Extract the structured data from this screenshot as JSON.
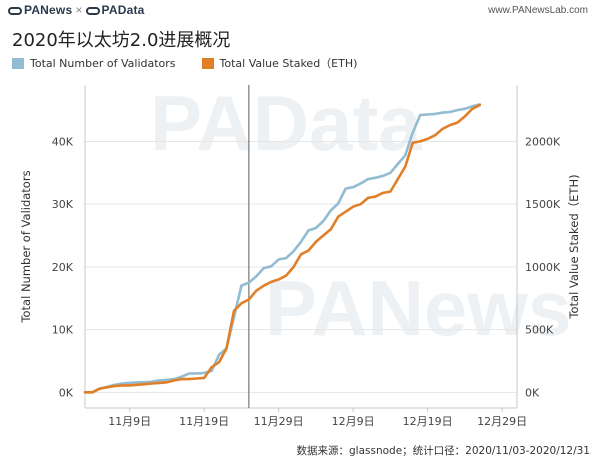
{
  "header": {
    "brand_left": "PANews",
    "brand_sep": "×",
    "brand_right": "PAData",
    "site": "www.PANewsLab.com"
  },
  "watermarks": [
    "PAData",
    "PANews"
  ],
  "colors": {
    "validators": "#93bcd2",
    "staked": "#e07f28",
    "grid": "#e6e6e6",
    "axis": "#c8c8c8",
    "marker": "#777777"
  },
  "source": "数据来源：glassnode；统计口径：2020/11/03-2020/12/31",
  "chart_data": {
    "type": "line",
    "title": "2020年以太坊2.0进展概况",
    "x_range": [
      "2020-11-03",
      "2020-12-31"
    ],
    "x_ticks": [
      {
        "date": "2020-11-09",
        "label": "11月9日"
      },
      {
        "date": "2020-11-19",
        "label": "11月19日"
      },
      {
        "date": "2020-11-29",
        "label": "11月29日"
      },
      {
        "date": "2020-12-09",
        "label": "12月9日"
      },
      {
        "date": "2020-12-19",
        "label": "12月19日"
      },
      {
        "date": "2020-12-29",
        "label": "12月29日"
      }
    ],
    "marker_date": "2020-11-25",
    "left_axis": {
      "label": "Total Number of Validators",
      "range": [
        -2500,
        49000
      ],
      "ticks": [
        0,
        10000,
        20000,
        30000,
        40000
      ],
      "tick_labels": [
        "0K",
        "10K",
        "20K",
        "30K",
        "40K"
      ]
    },
    "right_axis": {
      "label": "Total Value Staked（ETH)",
      "range": [
        -125000,
        2450000
      ],
      "ticks": [
        0,
        500000,
        1000000,
        1500000,
        2000000
      ],
      "tick_labels": [
        "0K",
        "500K",
        "1000K",
        "1500K",
        "2000K"
      ]
    },
    "grid": true,
    "legend_position": "top-left",
    "series": [
      {
        "name": "Total Number of Validators",
        "axis": "left",
        "points": [
          [
            "2020-11-03",
            0
          ],
          [
            "2020-11-04",
            0
          ],
          [
            "2020-11-05",
            600
          ],
          [
            "2020-11-06",
            900
          ],
          [
            "2020-11-07",
            1200
          ],
          [
            "2020-11-08",
            1400
          ],
          [
            "2020-11-09",
            1500
          ],
          [
            "2020-11-10",
            1600
          ],
          [
            "2020-11-11",
            1600
          ],
          [
            "2020-11-12",
            1700
          ],
          [
            "2020-11-13",
            1900
          ],
          [
            "2020-11-14",
            2000
          ],
          [
            "2020-11-15",
            2100
          ],
          [
            "2020-11-16",
            2500
          ],
          [
            "2020-11-17",
            3000
          ],
          [
            "2020-11-18",
            3000
          ],
          [
            "2020-11-19",
            3100
          ],
          [
            "2020-11-20",
            3400
          ],
          [
            "2020-11-21",
            6000
          ],
          [
            "2020-11-22",
            7000
          ],
          [
            "2020-11-23",
            12000
          ],
          [
            "2020-11-24",
            17000
          ],
          [
            "2020-11-25",
            17500
          ],
          [
            "2020-11-26",
            18500
          ],
          [
            "2020-11-27",
            19800
          ],
          [
            "2020-11-28",
            20100
          ],
          [
            "2020-11-29",
            21200
          ],
          [
            "2020-11-30",
            21400
          ],
          [
            "2020-12-01",
            22500
          ],
          [
            "2020-12-02",
            24000
          ],
          [
            "2020-12-03",
            25800
          ],
          [
            "2020-12-04",
            26200
          ],
          [
            "2020-12-05",
            27300
          ],
          [
            "2020-12-06",
            29000
          ],
          [
            "2020-12-07",
            30100
          ],
          [
            "2020-12-08",
            32500
          ],
          [
            "2020-12-09",
            32700
          ],
          [
            "2020-12-10",
            33300
          ],
          [
            "2020-12-11",
            34000
          ],
          [
            "2020-12-12",
            34200
          ],
          [
            "2020-12-13",
            34500
          ],
          [
            "2020-12-14",
            35000
          ],
          [
            "2020-12-15",
            36400
          ],
          [
            "2020-12-16",
            37800
          ],
          [
            "2020-12-17",
            41400
          ],
          [
            "2020-12-18",
            44200
          ],
          [
            "2020-12-19",
            44300
          ],
          [
            "2020-12-20",
            44400
          ],
          [
            "2020-12-21",
            44600
          ],
          [
            "2020-12-22",
            44700
          ],
          [
            "2020-12-23",
            45000
          ],
          [
            "2020-12-24",
            45200
          ],
          [
            "2020-12-25",
            45600
          ],
          [
            "2020-12-26",
            45900
          ]
        ]
      },
      {
        "name": "Total Value Staked（ETH)",
        "axis": "right",
        "points": [
          [
            "2020-11-03",
            0
          ],
          [
            "2020-11-04",
            0
          ],
          [
            "2020-11-05",
            30000
          ],
          [
            "2020-11-06",
            40000
          ],
          [
            "2020-11-07",
            50000
          ],
          [
            "2020-11-08",
            55000
          ],
          [
            "2020-11-09",
            55000
          ],
          [
            "2020-11-10",
            60000
          ],
          [
            "2020-11-11",
            65000
          ],
          [
            "2020-11-12",
            70000
          ],
          [
            "2020-11-13",
            75000
          ],
          [
            "2020-11-14",
            80000
          ],
          [
            "2020-11-15",
            95000
          ],
          [
            "2020-11-16",
            105000
          ],
          [
            "2020-11-17",
            105000
          ],
          [
            "2020-11-18",
            110000
          ],
          [
            "2020-11-19",
            115000
          ],
          [
            "2020-11-20",
            200000
          ],
          [
            "2020-11-21",
            240000
          ],
          [
            "2020-11-22",
            350000
          ],
          [
            "2020-11-23",
            650000
          ],
          [
            "2020-11-24",
            710000
          ],
          [
            "2020-11-25",
            740000
          ],
          [
            "2020-11-26",
            810000
          ],
          [
            "2020-11-27",
            850000
          ],
          [
            "2020-11-28",
            880000
          ],
          [
            "2020-11-29",
            900000
          ],
          [
            "2020-11-30",
            930000
          ],
          [
            "2020-12-01",
            1000000
          ],
          [
            "2020-12-02",
            1100000
          ],
          [
            "2020-12-03",
            1130000
          ],
          [
            "2020-12-04",
            1200000
          ],
          [
            "2020-12-05",
            1250000
          ],
          [
            "2020-12-06",
            1300000
          ],
          [
            "2020-12-07",
            1400000
          ],
          [
            "2020-12-08",
            1440000
          ],
          [
            "2020-12-09",
            1480000
          ],
          [
            "2020-12-10",
            1500000
          ],
          [
            "2020-12-11",
            1550000
          ],
          [
            "2020-12-12",
            1560000
          ],
          [
            "2020-12-13",
            1590000
          ],
          [
            "2020-12-14",
            1600000
          ],
          [
            "2020-12-15",
            1700000
          ],
          [
            "2020-12-16",
            1800000
          ],
          [
            "2020-12-17",
            1990000
          ],
          [
            "2020-12-18",
            2000000
          ],
          [
            "2020-12-19",
            2020000
          ],
          [
            "2020-12-20",
            2050000
          ],
          [
            "2020-12-21",
            2100000
          ],
          [
            "2020-12-22",
            2130000
          ],
          [
            "2020-12-23",
            2150000
          ],
          [
            "2020-12-24",
            2200000
          ],
          [
            "2020-12-25",
            2260000
          ],
          [
            "2020-12-26",
            2290000
          ]
        ]
      }
    ]
  }
}
